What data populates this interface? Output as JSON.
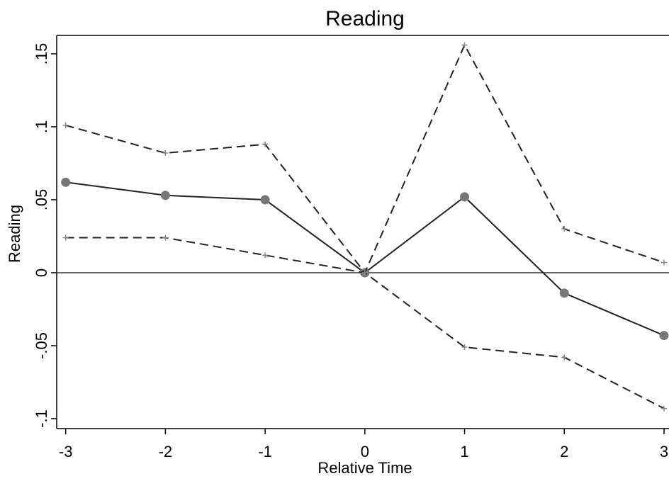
{
  "chart_data": {
    "type": "line",
    "title": "Reading",
    "x_label": "Relative Time",
    "y_label": "Reading",
    "x": [
      -3,
      -2,
      -1,
      0,
      1,
      2,
      3
    ],
    "series": [
      {
        "color": "#222222",
        "marker_color": "#777777",
        "style": "solid",
        "marker": "circle",
        "values": [
          0.062,
          0.053,
          0.05,
          0,
          0.052,
          -0.014,
          -0.043
        ]
      },
      {
        "color": "#222222",
        "marker_color": "#888888",
        "style": "dashed",
        "marker": "plus",
        "values": [
          0.101,
          0.082,
          0.088,
          0,
          0.156,
          0.03,
          0.007
        ]
      },
      {
        "color": "#222222",
        "marker_color": "#888888",
        "style": "dashed",
        "marker": "plus",
        "values": [
          0.024,
          0.024,
          0.012,
          0,
          -0.051,
          -0.058,
          -0.093
        ]
      }
    ],
    "xlim": [
      -3.09,
      3.05
    ],
    "ylim": [
      -0.1068,
      0.1626
    ],
    "xticks": [
      -3,
      -2,
      -1,
      0,
      1,
      2,
      3
    ],
    "yticks": [
      {
        "value": -0.1,
        "label": "-.1"
      },
      {
        "value": -0.05,
        "label": "-.05"
      },
      0,
      {
        "value": 0.05,
        "label": ".05"
      },
      {
        "value": 0.1,
        "label": ".1"
      },
      {
        "value": 0.15,
        "label": ".15"
      }
    ],
    "reference_line": 0,
    "grid": false
  }
}
